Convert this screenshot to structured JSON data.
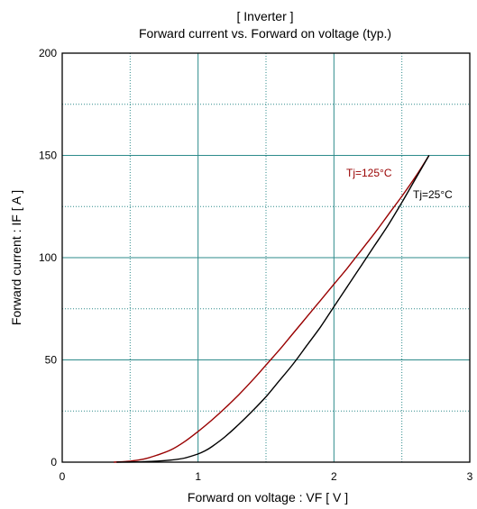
{
  "chart_data": {
    "type": "line",
    "title": "[ Inverter ]",
    "subtitle": "Forward current  vs.  Forward on voltage  (typ.)",
    "xlabel": "Forward on voltage  :  VF  [ V ]",
    "ylabel": "Forward current  :  IF  [ A ]",
    "xlim": [
      0,
      3
    ],
    "ylim": [
      0,
      200
    ],
    "x_ticks": [
      0,
      1,
      2,
      3
    ],
    "y_ticks": [
      0,
      50,
      100,
      150,
      200
    ],
    "x_ticks_labels": [
      "0",
      "1",
      "2",
      "3"
    ],
    "y_ticks_labels": [
      "0",
      "50",
      "100",
      "150",
      "200"
    ],
    "grid": true,
    "series": [
      {
        "name": "Tj=125°C",
        "color": "#990000",
        "x": [
          0.38,
          0.5,
          0.6,
          0.7,
          0.8,
          0.9,
          1.0,
          1.1,
          1.2,
          1.3,
          1.4,
          1.5,
          1.6,
          1.7,
          1.8,
          1.9,
          2.0,
          2.1,
          2.2,
          2.3,
          2.4,
          2.5,
          2.6,
          2.7
        ],
        "values": [
          0,
          0.5,
          1.5,
          3.5,
          6,
          10,
          15,
          20.5,
          26.5,
          33,
          40,
          47.5,
          55,
          63,
          71,
          79,
          87,
          95,
          103.5,
          112,
          121,
          130,
          139.5,
          150
        ]
      },
      {
        "name": "Tj=25°C",
        "color": "#000000",
        "x": [
          0.4,
          0.6,
          0.8,
          0.9,
          1.0,
          1.05,
          1.1,
          1.2,
          1.3,
          1.4,
          1.5,
          1.6,
          1.7,
          1.8,
          1.9,
          2.0,
          2.1,
          2.2,
          2.3,
          2.4,
          2.5,
          2.6,
          2.7
        ],
        "values": [
          0,
          0.2,
          1,
          2,
          4,
          5.5,
          7.5,
          12.5,
          18.5,
          25,
          32,
          40,
          48,
          57,
          66,
          76,
          86,
          96,
          106,
          116,
          127,
          138.5,
          150
        ]
      }
    ]
  }
}
